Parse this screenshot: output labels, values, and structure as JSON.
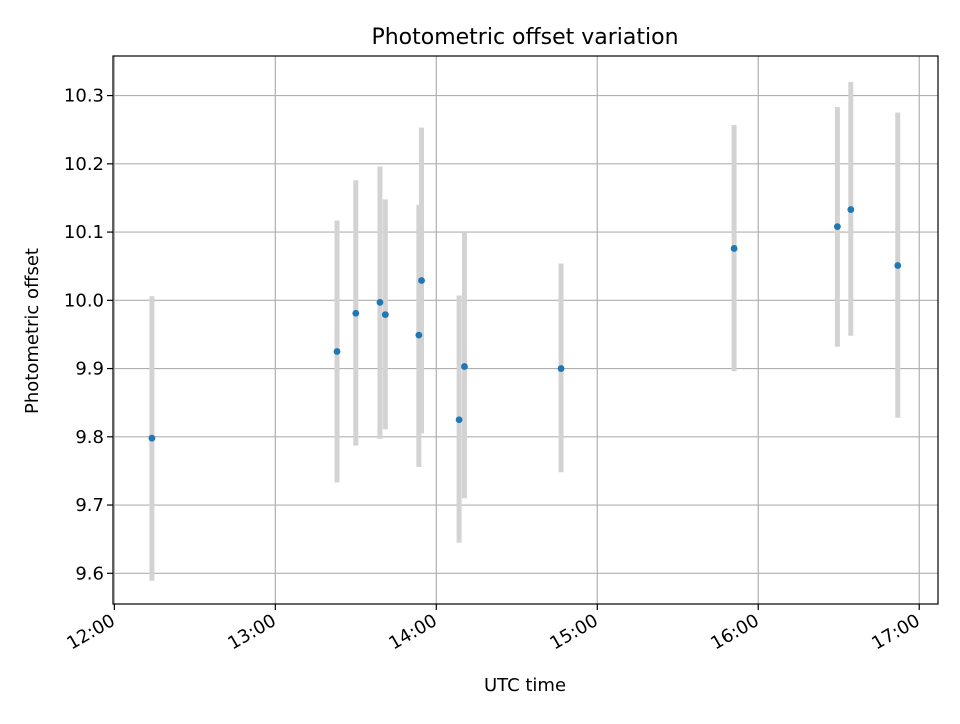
{
  "chart_data": {
    "type": "scatter",
    "title": "Photometric offset variation",
    "xlabel": "UTC time",
    "ylabel": "Photometric offset",
    "x_tick_labels": [
      "12:00",
      "13:00",
      "14:00",
      "15:00",
      "16:00",
      "17:00"
    ],
    "y_tick_labels": [
      "9.6",
      "9.7",
      "9.8",
      "9.9",
      "10.0",
      "10.1",
      "10.2",
      "10.3"
    ],
    "xlim": [
      "11:59:30",
      "17:07:00"
    ],
    "ylim": [
      9.555,
      10.358
    ],
    "grid": true,
    "marker_color": "#1f77b4",
    "errorbar_color": "#d3d3d3",
    "points": [
      {
        "x": "12:14:00",
        "y": 9.798,
        "ylow": 9.589,
        "yhigh": 10.006
      },
      {
        "x": "13:23:00",
        "y": 9.925,
        "ylow": 9.733,
        "yhigh": 10.117
      },
      {
        "x": "13:30:00",
        "y": 9.981,
        "ylow": 9.787,
        "yhigh": 10.176
      },
      {
        "x": "13:39:00",
        "y": 9.997,
        "ylow": 9.797,
        "yhigh": 10.196
      },
      {
        "x": "13:41:00",
        "y": 9.979,
        "ylow": 9.811,
        "yhigh": 10.148
      },
      {
        "x": "13:53:30",
        "y": 9.949,
        "ylow": 9.756,
        "yhigh": 10.14
      },
      {
        "x": "13:54:30",
        "y": 10.029,
        "ylow": 9.805,
        "yhigh": 10.253
      },
      {
        "x": "14:08:30",
        "y": 9.825,
        "ylow": 9.645,
        "yhigh": 10.007
      },
      {
        "x": "14:10:30",
        "y": 9.903,
        "ylow": 9.71,
        "yhigh": 10.1
      },
      {
        "x": "14:46:30",
        "y": 9.9,
        "ylow": 9.748,
        "yhigh": 10.054
      },
      {
        "x": "15:51:00",
        "y": 10.076,
        "ylow": 9.896,
        "yhigh": 10.257
      },
      {
        "x": "16:29:30",
        "y": 10.108,
        "ylow": 9.932,
        "yhigh": 10.283
      },
      {
        "x": "16:34:30",
        "y": 10.133,
        "ylow": 9.948,
        "yhigh": 10.32
      },
      {
        "x": "16:52:00",
        "y": 10.051,
        "ylow": 9.828,
        "yhigh": 10.275
      }
    ]
  }
}
